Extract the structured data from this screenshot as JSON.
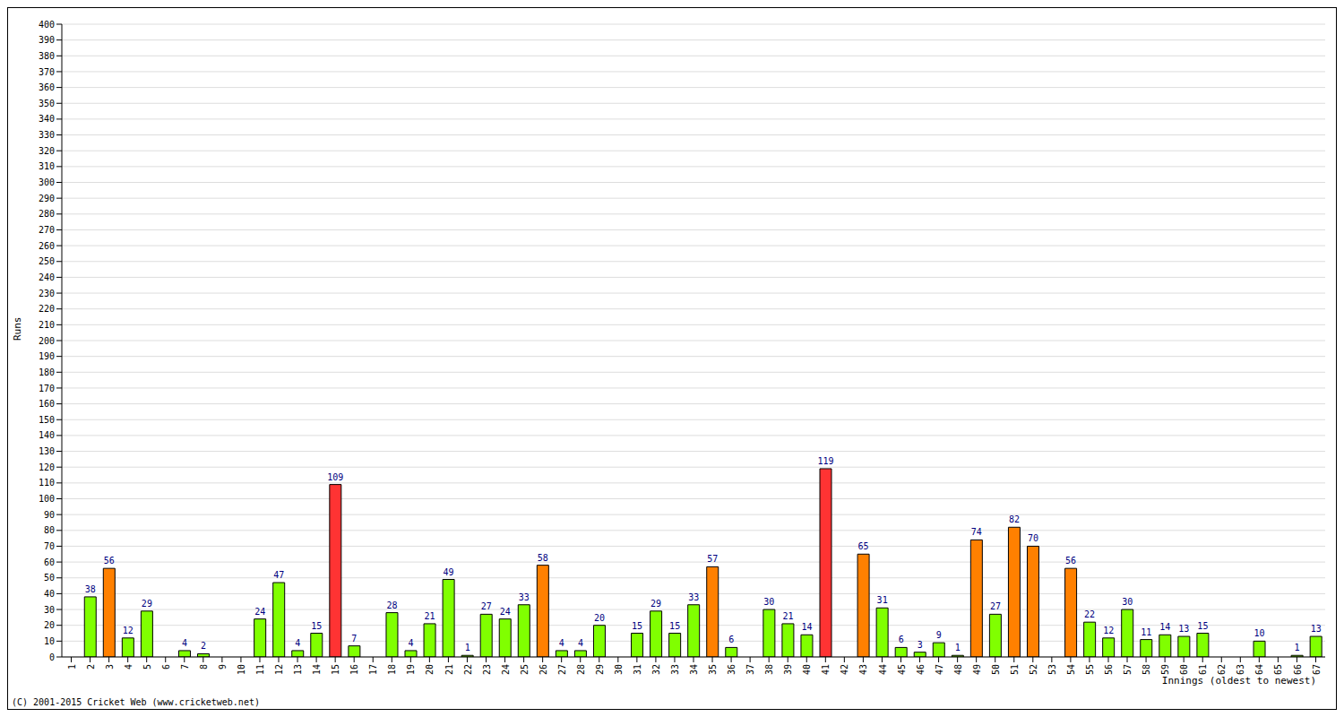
{
  "chart_data": {
    "type": "bar",
    "xlabel": "Innings (oldest to newest)",
    "ylabel": "Runs",
    "annotations": [
      "(C) 2001-2015 Cricket Web (www.cricketweb.net)"
    ],
    "categories": [
      "1",
      "2",
      "3",
      "4",
      "5",
      "6",
      "7",
      "8",
      "9",
      "10",
      "11",
      "12",
      "13",
      "14",
      "15",
      "16",
      "17",
      "18",
      "19",
      "20",
      "21",
      "22",
      "23",
      "24",
      "25",
      "26",
      "27",
      "28",
      "29",
      "30",
      "31",
      "32",
      "33",
      "34",
      "35",
      "36",
      "37",
      "38",
      "39",
      "40",
      "41",
      "42",
      "43",
      "44",
      "45",
      "46",
      "47",
      "48",
      "49",
      "50",
      "51",
      "52",
      "53",
      "54",
      "55",
      "56",
      "57",
      "58",
      "59",
      "60",
      "61",
      "62",
      "63",
      "64",
      "65",
      "66",
      "67"
    ],
    "values": [
      0,
      38,
      56,
      12,
      29,
      0,
      4,
      2,
      0,
      0,
      24,
      47,
      4,
      15,
      109,
      7,
      0,
      28,
      4,
      21,
      49,
      1,
      27,
      24,
      33,
      58,
      4,
      4,
      20,
      0,
      15,
      29,
      15,
      33,
      57,
      6,
      0,
      30,
      21,
      14,
      119,
      0,
      65,
      31,
      6,
      3,
      9,
      1,
      74,
      27,
      82,
      70,
      0,
      56,
      22,
      12,
      30,
      11,
      14,
      13,
      15,
      0,
      0,
      10,
      0,
      1,
      13
    ],
    "colors": [
      "#80ff00",
      "#80ff00",
      "#ff8000",
      "#80ff00",
      "#80ff00",
      "#80ff00",
      "#80ff00",
      "#80ff00",
      "#80ff00",
      "#80ff00",
      "#80ff00",
      "#80ff00",
      "#80ff00",
      "#80ff00",
      "#ff3333",
      "#80ff00",
      "#80ff00",
      "#80ff00",
      "#80ff00",
      "#80ff00",
      "#80ff00",
      "#80ff00",
      "#80ff00",
      "#80ff00",
      "#80ff00",
      "#ff8000",
      "#80ff00",
      "#80ff00",
      "#80ff00",
      "#80ff00",
      "#80ff00",
      "#80ff00",
      "#80ff00",
      "#80ff00",
      "#ff8000",
      "#80ff00",
      "#80ff00",
      "#80ff00",
      "#80ff00",
      "#80ff00",
      "#ff3333",
      "#80ff00",
      "#ff8000",
      "#80ff00",
      "#80ff00",
      "#80ff00",
      "#80ff00",
      "#80ff00",
      "#ff8000",
      "#80ff00",
      "#ff8000",
      "#ff8000",
      "#80ff00",
      "#ff8000",
      "#80ff00",
      "#80ff00",
      "#80ff00",
      "#80ff00",
      "#80ff00",
      "#80ff00",
      "#80ff00",
      "#80ff00",
      "#80ff00",
      "#80ff00",
      "#80ff00",
      "#80ff00",
      "#80ff00"
    ],
    "ylim": [
      0,
      400
    ],
    "yticks": [
      0,
      10,
      20,
      30,
      40,
      50,
      60,
      70,
      80,
      90,
      100,
      110,
      120,
      130,
      140,
      150,
      160,
      170,
      180,
      190,
      200,
      210,
      220,
      230,
      240,
      250,
      260,
      270,
      280,
      290,
      300,
      310,
      320,
      330,
      340,
      350,
      360,
      370,
      380,
      390,
      400
    ],
    "grid": true,
    "data_labels": true
  }
}
